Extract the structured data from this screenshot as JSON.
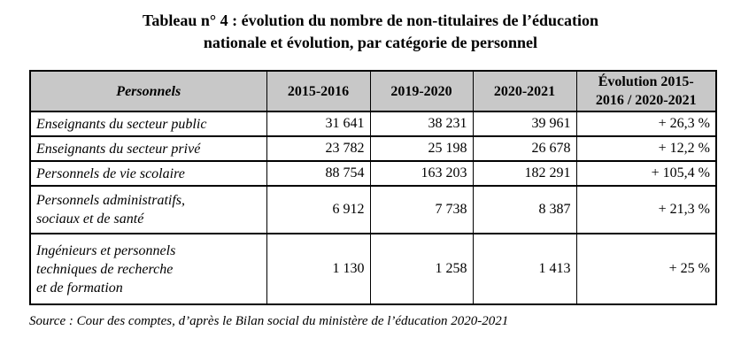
{
  "title": "Tableau n° 4 : évolution du nombre de non-titulaires de l’éducation\nnationale et évolution, par catégorie de personnel",
  "table": {
    "header": {
      "personnels": "Personnels",
      "cols": [
        "2015-2016",
        "2019-2020",
        "2020-2021",
        "Évolution 2015-\n2016 / 2020-2021"
      ]
    },
    "rows": [
      {
        "label": "Enseignants du secteur public",
        "values": [
          "31 641",
          "38 231",
          "39 961"
        ],
        "evolution": "+ 26,3 %"
      },
      {
        "label": "Enseignants du secteur privé",
        "values": [
          "23 782",
          "25 198",
          "26 678"
        ],
        "evolution": "+ 12,2 %"
      },
      {
        "label": "Personnels de vie scolaire",
        "values": [
          "88 754",
          "163 203",
          "182 291"
        ],
        "evolution": "+ 105,4 %"
      },
      {
        "label": "Personnels administratifs,\nsociaux et de santé",
        "values": [
          "6 912",
          "7 738",
          "8 387"
        ],
        "evolution": "+ 21,3 %"
      },
      {
        "label": "Ingénieurs et personnels\ntechniques de recherche\net de formation",
        "values": [
          "1 130",
          "1 258",
          "1 413"
        ],
        "evolution": "+ 25 %"
      }
    ]
  },
  "source": "Source : Cour des comptes, d’après le Bilan social du ministère de l’éducation 2020-2021",
  "colors": {
    "header_bg": "#c8c8c8",
    "border": "#000000",
    "text": "#000000"
  }
}
